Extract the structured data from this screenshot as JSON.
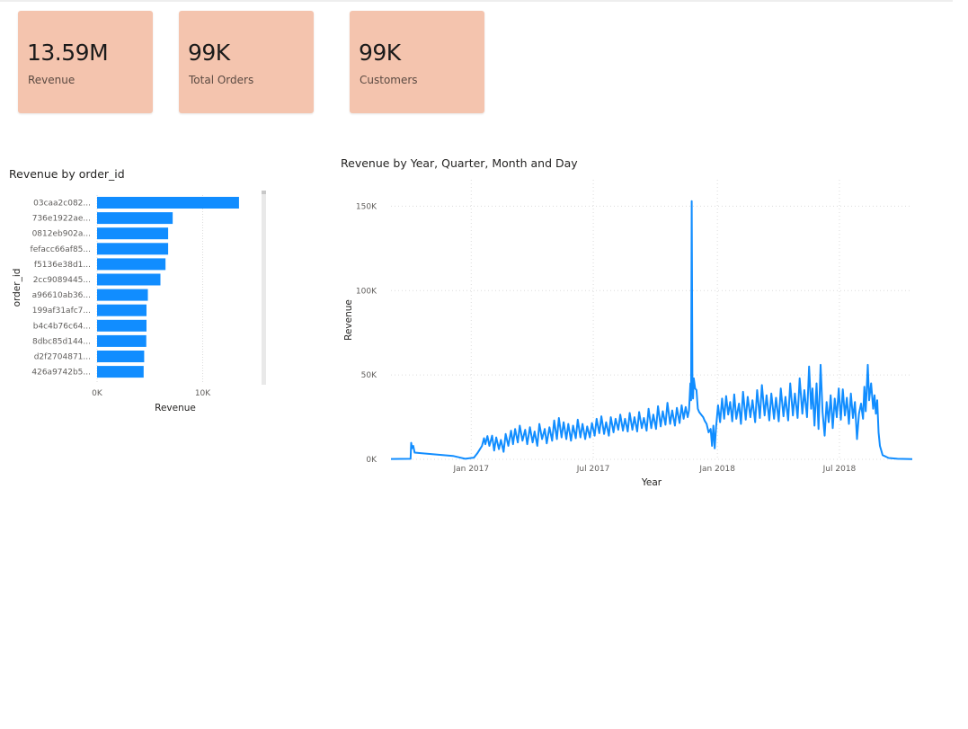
{
  "kpis": [
    {
      "value": "13.59M",
      "label": "Revenue"
    },
    {
      "value": "99K",
      "label": "Total Orders"
    },
    {
      "value": "99K",
      "label": "Customers"
    }
  ],
  "colors": {
    "kpi_background": "#f4c4ae",
    "series": "#118dff",
    "gridline": "#dcdcdc",
    "scrollbar": "#e9e9e9"
  },
  "chart_data": [
    {
      "type": "bar",
      "orientation": "horizontal",
      "title": "Revenue by order_id",
      "xlabel": "Revenue",
      "ylabel": "order_id",
      "categories": [
        "03caa2c082...",
        "736e1922ae...",
        "0812eb902a...",
        "fefacc66af85...",
        "f5136e38d1...",
        "2cc9089445...",
        "a96610ab36...",
        "199af31afc7...",
        "b4c4b76c64...",
        "8dbc85d144...",
        "d2f2704871...",
        "426a9742b5..."
      ],
      "values": [
        13440,
        7160,
        6730,
        6730,
        6480,
        6000,
        4810,
        4680,
        4680,
        4660,
        4460,
        4410
      ],
      "xlim": [
        0,
        16000
      ],
      "xticks": [
        {
          "value": 0,
          "label": "0K"
        },
        {
          "value": 10000,
          "label": "10K"
        }
      ],
      "grid": true,
      "scrollbar": true
    },
    {
      "type": "line",
      "title": "Revenue by Year, Quarter, Month and Day",
      "xlabel": "Year",
      "ylabel": "Revenue",
      "xlim": [
        "2016-09-04",
        "2018-10-17"
      ],
      "ylim": [
        0,
        155000
      ],
      "xticks": [
        {
          "value": "2017-01-01",
          "label": "Jan 2017"
        },
        {
          "value": "2017-07-01",
          "label": "Jul 2017"
        },
        {
          "value": "2018-01-01",
          "label": "Jan 2018"
        },
        {
          "value": "2018-07-01",
          "label": "Jul 2018"
        }
      ],
      "yticks": [
        {
          "value": 0,
          "label": "0K"
        },
        {
          "value": 50000,
          "label": "50K"
        },
        {
          "value": 100000,
          "label": "100K"
        },
        {
          "value": 150000,
          "label": "150K"
        }
      ],
      "grid": true,
      "series": [
        {
          "points": [
            [
              "2016-09-04",
              200
            ],
            [
              "2016-10-03",
              300
            ],
            [
              "2016-10-04",
              9800
            ],
            [
              "2016-10-05",
              6500
            ],
            [
              "2016-10-07",
              8000
            ],
            [
              "2016-10-09",
              4000
            ],
            [
              "2016-10-20",
              3600
            ],
            [
              "2016-11-10",
              2900
            ],
            [
              "2016-12-05",
              2000
            ],
            [
              "2016-12-23",
              300
            ],
            [
              "2017-01-05",
              1000
            ],
            [
              "2017-01-10",
              3500
            ],
            [
              "2017-01-14",
              6000
            ],
            [
              "2017-01-17",
              8000
            ],
            [
              "2017-01-20",
              12500
            ],
            [
              "2017-01-22",
              9000
            ],
            [
              "2017-01-25",
              13800
            ],
            [
              "2017-01-28",
              8000
            ],
            [
              "2017-02-01",
              14000
            ],
            [
              "2017-02-04",
              5200
            ],
            [
              "2017-02-07",
              13000
            ],
            [
              "2017-02-11",
              6000
            ],
            [
              "2017-02-14",
              11500
            ],
            [
              "2017-02-18",
              4500
            ],
            [
              "2017-02-21",
              15000
            ],
            [
              "2017-02-25",
              8000
            ],
            [
              "2017-03-01",
              17000
            ],
            [
              "2017-03-04",
              9000
            ],
            [
              "2017-03-07",
              18000
            ],
            [
              "2017-03-11",
              10000
            ],
            [
              "2017-03-14",
              20000
            ],
            [
              "2017-03-18",
              11000
            ],
            [
              "2017-03-22",
              17500
            ],
            [
              "2017-03-25",
              9000
            ],
            [
              "2017-03-29",
              19000
            ],
            [
              "2017-04-02",
              10000
            ],
            [
              "2017-04-05",
              16500
            ],
            [
              "2017-04-09",
              8000
            ],
            [
              "2017-04-12",
              21000
            ],
            [
              "2017-04-16",
              12000
            ],
            [
              "2017-04-20",
              18000
            ],
            [
              "2017-04-23",
              9500
            ],
            [
              "2017-04-27",
              19000
            ],
            [
              "2017-05-01",
              11000
            ],
            [
              "2017-05-04",
              23000
            ],
            [
              "2017-05-08",
              12000
            ],
            [
              "2017-05-11",
              24500
            ],
            [
              "2017-05-15",
              13000
            ],
            [
              "2017-05-18",
              22000
            ],
            [
              "2017-05-22",
              12000
            ],
            [
              "2017-05-25",
              21000
            ],
            [
              "2017-05-29",
              11000
            ],
            [
              "2017-06-01",
              20000
            ],
            [
              "2017-06-05",
              12500
            ],
            [
              "2017-06-08",
              23500
            ],
            [
              "2017-06-12",
              13000
            ],
            [
              "2017-06-15",
              21000
            ],
            [
              "2017-06-19",
              12000
            ],
            [
              "2017-06-22",
              19500
            ],
            [
              "2017-06-26",
              13000
            ],
            [
              "2017-06-29",
              21500
            ],
            [
              "2017-07-03",
              14000
            ],
            [
              "2017-07-06",
              24000
            ],
            [
              "2017-07-10",
              15500
            ],
            [
              "2017-07-13",
              25500
            ],
            [
              "2017-07-17",
              15000
            ],
            [
              "2017-07-20",
              22000
            ],
            [
              "2017-07-24",
              14000
            ],
            [
              "2017-07-27",
              25000
            ],
            [
              "2017-07-31",
              16000
            ],
            [
              "2017-08-03",
              24000
            ],
            [
              "2017-08-07",
              17500
            ],
            [
              "2017-08-10",
              26500
            ],
            [
              "2017-08-14",
              17000
            ],
            [
              "2017-08-17",
              24000
            ],
            [
              "2017-08-21",
              16500
            ],
            [
              "2017-08-24",
              27500
            ],
            [
              "2017-08-28",
              17500
            ],
            [
              "2017-08-31",
              25000
            ],
            [
              "2017-09-04",
              16500
            ],
            [
              "2017-09-07",
              28000
            ],
            [
              "2017-09-11",
              18500
            ],
            [
              "2017-09-14",
              24500
            ],
            [
              "2017-09-18",
              17000
            ],
            [
              "2017-09-21",
              30000
            ],
            [
              "2017-09-25",
              18500
            ],
            [
              "2017-09-28",
              26500
            ],
            [
              "2017-10-02",
              18000
            ],
            [
              "2017-10-05",
              31500
            ],
            [
              "2017-10-09",
              19500
            ],
            [
              "2017-10-12",
              28500
            ],
            [
              "2017-10-16",
              20500
            ],
            [
              "2017-10-19",
              33500
            ],
            [
              "2017-10-23",
              21000
            ],
            [
              "2017-10-26",
              29000
            ],
            [
              "2017-10-30",
              20000
            ],
            [
              "2017-11-02",
              30500
            ],
            [
              "2017-11-06",
              21500
            ],
            [
              "2017-11-09",
              32000
            ],
            [
              "2017-11-12",
              24000
            ],
            [
              "2017-11-15",
              31000
            ],
            [
              "2017-11-18",
              25000
            ],
            [
              "2017-11-20",
              29000
            ],
            [
              "2017-11-22",
              45000
            ],
            [
              "2017-11-23",
              35000
            ],
            [
              "2017-11-24",
              153000
            ],
            [
              "2017-11-25",
              45000
            ],
            [
              "2017-11-26",
              36000
            ],
            [
              "2017-11-27",
              48000
            ],
            [
              "2017-11-29",
              42000
            ],
            [
              "2017-12-01",
              41000
            ],
            [
              "2017-12-03",
              30000
            ],
            [
              "2017-12-05",
              28000
            ],
            [
              "2017-12-08",
              26500
            ],
            [
              "2017-12-11",
              25000
            ],
            [
              "2017-12-13",
              23000
            ],
            [
              "2017-12-16",
              21000
            ],
            [
              "2017-12-19",
              16000
            ],
            [
              "2017-12-22",
              18000
            ],
            [
              "2017-12-24",
              8000
            ],
            [
              "2017-12-26",
              20000
            ],
            [
              "2017-12-28",
              6500
            ],
            [
              "2017-12-30",
              19000
            ],
            [
              "2018-01-02",
              32000
            ],
            [
              "2018-01-05",
              22000
            ],
            [
              "2018-01-08",
              36000
            ],
            [
              "2018-01-11",
              24000
            ],
            [
              "2018-01-14",
              37500
            ],
            [
              "2018-01-17",
              26500
            ],
            [
              "2018-01-20",
              34000
            ],
            [
              "2018-01-23",
              22500
            ],
            [
              "2018-01-26",
              38500
            ],
            [
              "2018-01-29",
              24000
            ],
            [
              "2018-02-02",
              33000
            ],
            [
              "2018-02-05",
              21000
            ],
            [
              "2018-02-08",
              40000
            ],
            [
              "2018-02-12",
              23500
            ],
            [
              "2018-02-15",
              37000
            ],
            [
              "2018-02-19",
              25000
            ],
            [
              "2018-02-22",
              35000
            ],
            [
              "2018-02-26",
              22000
            ],
            [
              "2018-03-01",
              41000
            ],
            [
              "2018-03-05",
              24500
            ],
            [
              "2018-03-08",
              44000
            ],
            [
              "2018-03-12",
              26000
            ],
            [
              "2018-03-15",
              38000
            ],
            [
              "2018-03-19",
              23000
            ],
            [
              "2018-03-22",
              39000
            ],
            [
              "2018-03-26",
              24000
            ],
            [
              "2018-03-29",
              36500
            ],
            [
              "2018-04-02",
              22500
            ],
            [
              "2018-04-05",
              42000
            ],
            [
              "2018-04-09",
              25500
            ],
            [
              "2018-04-12",
              37000
            ],
            [
              "2018-04-16",
              23000
            ],
            [
              "2018-04-19",
              45000
            ],
            [
              "2018-04-23",
              26000
            ],
            [
              "2018-04-26",
              39000
            ],
            [
              "2018-04-30",
              24500
            ],
            [
              "2018-05-03",
              48000
            ],
            [
              "2018-05-07",
              27000
            ],
            [
              "2018-05-10",
              41000
            ],
            [
              "2018-05-14",
              25000
            ],
            [
              "2018-05-17",
              55000
            ],
            [
              "2018-05-20",
              30000
            ],
            [
              "2018-05-22",
              42000
            ],
            [
              "2018-05-25",
              20000
            ],
            [
              "2018-05-28",
              45000
            ],
            [
              "2018-05-31",
              18000
            ],
            [
              "2018-06-03",
              56000
            ],
            [
              "2018-06-06",
              28000
            ],
            [
              "2018-06-09",
              14000
            ],
            [
              "2018-06-12",
              34000
            ],
            [
              "2018-06-15",
              22000
            ],
            [
              "2018-06-18",
              38000
            ],
            [
              "2018-06-21",
              18500
            ],
            [
              "2018-06-24",
              36000
            ],
            [
              "2018-06-27",
              25000
            ],
            [
              "2018-06-30",
              42000
            ],
            [
              "2018-07-03",
              23500
            ],
            [
              "2018-07-06",
              41500
            ],
            [
              "2018-07-09",
              26000
            ],
            [
              "2018-07-12",
              36500
            ],
            [
              "2018-07-15",
              21000
            ],
            [
              "2018-07-18",
              39000
            ],
            [
              "2018-07-21",
              24500
            ],
            [
              "2018-07-24",
              34000
            ],
            [
              "2018-07-27",
              12000
            ],
            [
              "2018-07-30",
              27000
            ],
            [
              "2018-08-02",
              33000
            ],
            [
              "2018-08-05",
              24000
            ],
            [
              "2018-08-07",
              43000
            ],
            [
              "2018-08-09",
              28500
            ],
            [
              "2018-08-12",
              56000
            ],
            [
              "2018-08-14",
              35000
            ],
            [
              "2018-08-17",
              45000
            ],
            [
              "2018-08-20",
              30000
            ],
            [
              "2018-08-22",
              38000
            ],
            [
              "2018-08-24",
              27000
            ],
            [
              "2018-08-26",
              35000
            ],
            [
              "2018-08-28",
              16000
            ],
            [
              "2018-08-30",
              8000
            ],
            [
              "2018-09-03",
              2500
            ],
            [
              "2018-09-12",
              800
            ],
            [
              "2018-09-25",
              300
            ],
            [
              "2018-10-17",
              100
            ]
          ]
        }
      ]
    }
  ]
}
